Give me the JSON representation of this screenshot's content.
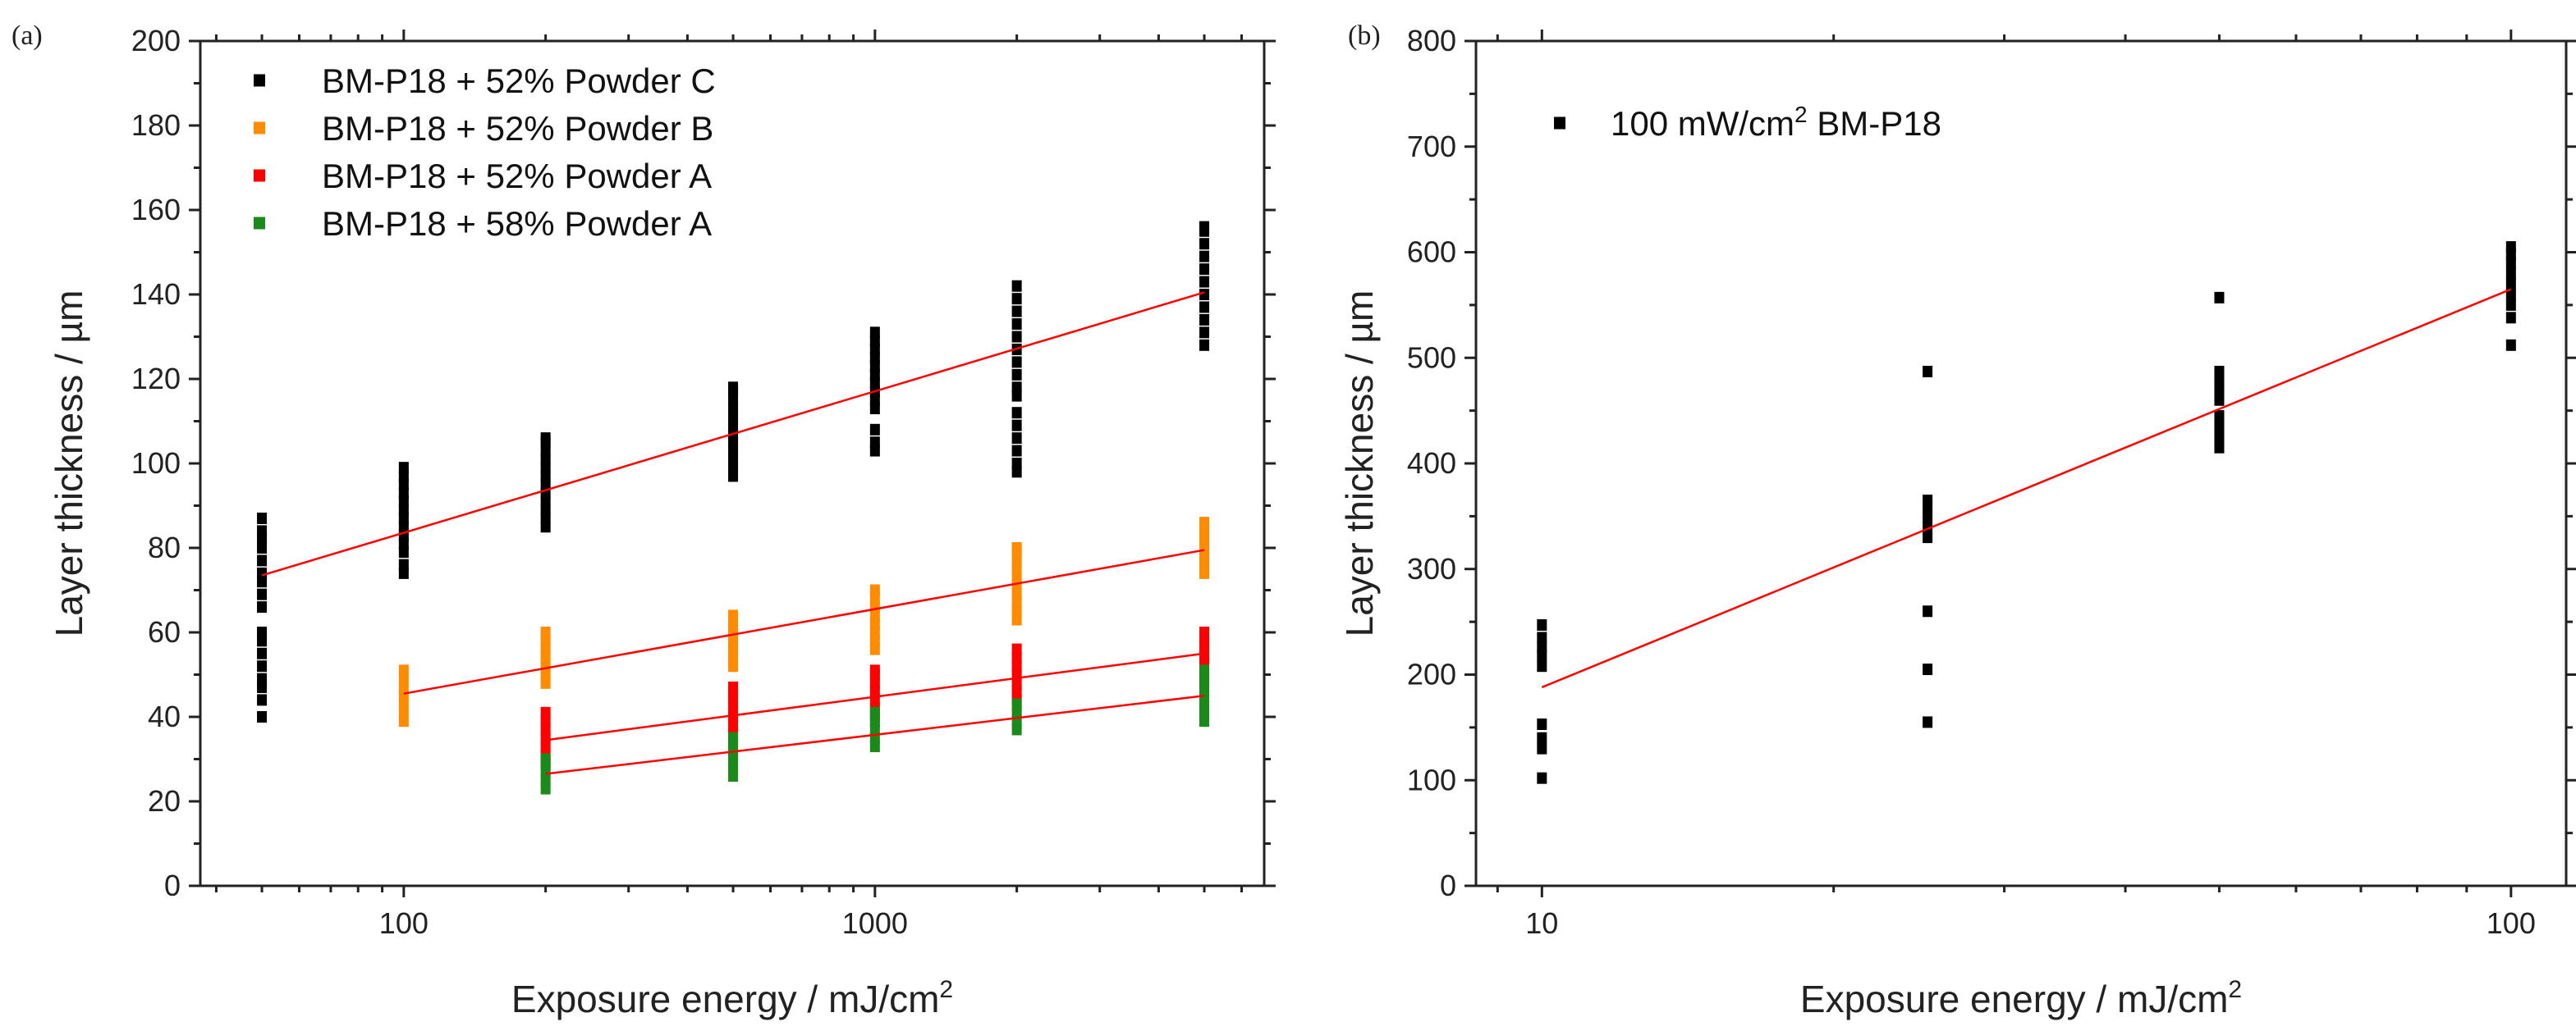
{
  "chart_data": [
    {
      "panel_label": "(a)",
      "type": "scatter",
      "x_scale": "log",
      "xlabel": "Exposure energy / mJ/cm",
      "xlabel_sup": "2",
      "ylabel": "Layer thickness / µm",
      "xlim": [
        37,
        6700
      ],
      "ylim": [
        0,
        200
      ],
      "x_ticks": [
        100,
        1000
      ],
      "x_tick_labels": [
        "100",
        "1000"
      ],
      "y_ticks": [
        0,
        20,
        40,
        60,
        80,
        100,
        120,
        140,
        160,
        180,
        200
      ],
      "y_tick_labels": [
        "0",
        "20",
        "40",
        "60",
        "80",
        "100",
        "120",
        "140",
        "160",
        "180",
        "200"
      ],
      "legend_position": "top-left",
      "series": [
        {
          "name": "BM-P18 + 52% Powder C",
          "color": "#000000",
          "points": [
            {
              "x": 50,
              "y": [
                40,
                44,
                47,
                49,
                52,
                55,
                58,
                60,
                66,
                69,
                72,
                74,
                77,
                80,
                82,
                84,
                87
              ]
            },
            {
              "x": 100,
              "y": [
                74,
                76,
                79,
                81,
                83,
                85,
                87,
                89,
                91,
                93,
                95,
                97,
                99
              ]
            },
            {
              "x": 200,
              "y": [
                85,
                87,
                89,
                91,
                93,
                95,
                97,
                99,
                101,
                103,
                105,
                106
              ]
            },
            {
              "x": 500,
              "y": [
                97,
                99,
                101,
                103,
                105,
                107,
                109,
                111,
                113,
                115,
                117,
                118
              ]
            },
            {
              "x": 1000,
              "y": [
                103,
                105,
                108,
                113,
                115,
                117,
                119,
                121,
                123,
                125,
                127,
                129,
                131
              ]
            },
            {
              "x": 2000,
              "y": [
                98,
                100,
                103,
                106,
                109,
                112,
                116,
                118,
                121,
                124,
                127,
                130,
                133,
                136,
                139,
                142
              ]
            },
            {
              "x": 5000,
              "y": [
                128,
                131,
                134,
                137,
                140,
                143,
                146,
                149,
                152,
                155,
                156
              ]
            }
          ],
          "fit": {
            "x": [
              50,
              5000
            ],
            "y": [
              73.5,
              140.5
            ]
          }
        },
        {
          "name": "BM-P18 + 52% Powder B",
          "color": "#ff8c00",
          "points": [
            {
              "x": 100,
              "y": [
                39,
                41,
                43,
                45,
                47,
                49,
                51
              ]
            },
            {
              "x": 200,
              "y": [
                48,
                50,
                52,
                54,
                56,
                58,
                60
              ]
            },
            {
              "x": 500,
              "y": [
                52,
                54,
                56,
                58,
                60,
                62,
                64
              ]
            },
            {
              "x": 1000,
              "y": [
                56,
                58,
                60,
                62,
                64,
                66,
                68,
                70
              ]
            },
            {
              "x": 2000,
              "y": [
                63,
                65,
                67,
                69,
                71,
                73,
                75,
                77,
                79,
                80
              ]
            },
            {
              "x": 5000,
              "y": [
                74,
                76,
                78,
                80,
                82,
                84,
                86
              ]
            }
          ],
          "fit": {
            "x": [
              100,
              5000
            ],
            "y": [
              45.5,
              79.5
            ]
          }
        },
        {
          "name": "BM-P18 + 52% Powder A",
          "color": "#ff0000",
          "points": [
            {
              "x": 200,
              "y": [
                29,
                31,
                33,
                35,
                37,
                39,
                41
              ]
            },
            {
              "x": 500,
              "y": [
                34,
                36,
                38,
                40,
                42,
                44,
                46,
                47
              ]
            },
            {
              "x": 1000,
              "y": [
                40,
                42,
                44,
                46,
                48,
                50,
                51
              ]
            },
            {
              "x": 2000,
              "y": [
                44,
                46,
                48,
                50,
                52,
                54,
                56
              ]
            },
            {
              "x": 5000,
              "y": [
                48,
                50,
                52,
                54,
                56,
                58,
                60
              ]
            }
          ],
          "fit": {
            "x": [
              200,
              5000
            ],
            "y": [
              34.5,
              55
            ]
          }
        },
        {
          "name": "BM-P18 + 58% Powder A",
          "color": "#1a8a1a",
          "points": [
            {
              "x": 200,
              "y": [
                23,
                25,
                27,
                29,
                30
              ]
            },
            {
              "x": 500,
              "y": [
                26,
                28,
                30,
                32,
                34,
                35
              ]
            },
            {
              "x": 1000,
              "y": [
                33,
                35,
                37,
                39,
                41
              ]
            },
            {
              "x": 2000,
              "y": [
                37,
                39,
                41,
                43
              ]
            },
            {
              "x": 5000,
              "y": [
                39,
                41,
                43,
                45,
                47,
                49,
                51
              ]
            }
          ],
          "fit": {
            "x": [
              200,
              5000
            ],
            "y": [
              26.5,
              45
            ]
          }
        }
      ]
    },
    {
      "panel_label": "(b)",
      "type": "scatter",
      "x_scale": "log",
      "xlabel": "Exposure energy / mJ/cm",
      "xlabel_sup": "2",
      "ylabel": "Layer thickness / µm",
      "xlim": [
        8.55,
        114
      ],
      "ylim": [
        0,
        800
      ],
      "x_ticks": [
        10,
        100
      ],
      "x_tick_labels": [
        "10",
        "100"
      ],
      "y_ticks": [
        0,
        100,
        200,
        300,
        400,
        500,
        600,
        700,
        800
      ],
      "y_tick_labels": [
        "0",
        "100",
        "200",
        "300",
        "400",
        "500",
        "600",
        "700",
        "800"
      ],
      "legend_position": "top-left",
      "series": [
        {
          "name": "100 mW/cm",
          "name_sup": "2",
          "name_suffix": " BM-P18",
          "color": "#000000",
          "points": [
            {
              "x": 10,
              "y": [
                102,
                130,
                140,
                153,
                208,
                218,
                226,
                235,
                247
              ]
            },
            {
              "x": 25,
              "y": [
                155,
                205,
                260,
                330,
                340,
                350,
                358,
                365,
                487
              ]
            },
            {
              "x": 50,
              "y": [
                415,
                425,
                435,
                445,
                460,
                470,
                478,
                487,
                557
              ]
            },
            {
              "x": 100,
              "y": [
                512,
                538,
                550,
                560,
                570,
                580,
                590,
                598,
                605
              ]
            }
          ],
          "fit": {
            "x": [
              10,
              100
            ],
            "y": [
              188,
              565
            ]
          }
        }
      ]
    }
  ]
}
